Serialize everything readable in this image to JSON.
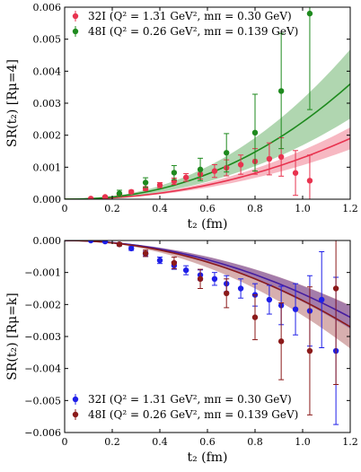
{
  "chart_data": [
    {
      "type": "scatter",
      "xlabel": "t₂ (fm)",
      "ylabel": "SR(t₂) [Rμ=4]",
      "xlim": [
        0,
        1.2
      ],
      "ylim": [
        0,
        0.006
      ],
      "xticks": [
        "0",
        "0.2",
        "0.4",
        "0.6",
        "0.8",
        "1.0",
        "1.2"
      ],
      "yticks": [
        "0.000",
        "0.001",
        "0.002",
        "0.003",
        "0.004",
        "0.005",
        "0.006"
      ],
      "legend_position": "top-left",
      "series": [
        {
          "name": "32I (Q² = 1.31 GeV², mπ = 0.30 GeV)",
          "color": "#e8334f",
          "x": [
            0.11,
            0.17,
            0.23,
            0.28,
            0.34,
            0.4,
            0.46,
            0.51,
            0.57,
            0.63,
            0.68,
            0.74,
            0.8,
            0.86,
            0.91,
            0.97,
            1.03
          ],
          "y": [
            2e-05,
            7e-05,
            0.00014,
            0.00023,
            0.00033,
            0.00044,
            0.00056,
            0.00068,
            0.00078,
            0.00088,
            0.00098,
            0.00108,
            0.00118,
            0.00126,
            0.00132,
            0.00082,
            0.00058
          ],
          "yerr": [
            2e-05,
            3e-05,
            4e-05,
            5e-05,
            6e-05,
            8e-05,
            0.0001,
            0.00012,
            0.00015,
            0.0002,
            0.00025,
            0.0003,
            0.0004,
            0.0005,
            0.0006,
            0.0007,
            0.0008
          ],
          "fit": {
            "a": 0.0019,
            "p": 2.1,
            "width": 0.18
          }
        },
        {
          "name": "48I (Q² = 0.26 GeV², mπ = 0.139 GeV)",
          "color": "#1e8a1e",
          "x": [
            0.23,
            0.34,
            0.46,
            0.57,
            0.68,
            0.8,
            0.91,
            1.03
          ],
          "y": [
            0.00018,
            0.00052,
            0.00083,
            0.00093,
            0.00145,
            0.00208,
            0.00338,
            0.0058
          ],
          "yerr": [
            0.0001,
            0.00015,
            0.00022,
            0.00035,
            0.0006,
            0.0012,
            0.0018,
            0.003
          ],
          "fit": {
            "a": 0.0036,
            "p": 2.2,
            "width": 0.3
          }
        }
      ]
    },
    {
      "type": "scatter",
      "xlabel": "t₂ (fm)",
      "ylabel": "SR(t₂) [Rμ=k]",
      "xlim": [
        0,
        1.2
      ],
      "ylim": [
        -0.006,
        0
      ],
      "xticks": [
        "0",
        "0.2",
        "0.4",
        "0.6",
        "0.8",
        "1.0",
        "1.2"
      ],
      "yticks": [
        "−0.006",
        "−0.005",
        "−0.004",
        "−0.003",
        "−0.002",
        "−0.001",
        "0.000"
      ],
      "legend_position": "bottom-left",
      "series": [
        {
          "name": "32I (Q² = 1.31 GeV², mπ = 0.30 GeV)",
          "color": "#1f1fe8",
          "x": [
            0.11,
            0.17,
            0.23,
            0.28,
            0.34,
            0.4,
            0.46,
            0.51,
            0.57,
            0.63,
            0.68,
            0.74,
            0.8,
            0.86,
            0.91,
            0.97,
            1.03,
            1.08,
            1.14
          ],
          "y": [
            0.0,
            -3e-05,
            -0.00012,
            -0.00025,
            -0.00042,
            -0.00062,
            -0.00078,
            -0.00093,
            -0.00108,
            -0.0012,
            -0.00135,
            -0.0015,
            -0.0017,
            -0.00185,
            -0.00203,
            -0.00215,
            -0.0022,
            -0.00185,
            -0.00345
          ],
          "yerr": [
            2e-05,
            3e-05,
            4e-05,
            6e-05,
            8e-05,
            0.0001,
            0.00012,
            0.00014,
            0.00016,
            0.0002,
            0.00025,
            0.0003,
            0.00035,
            0.00045,
            0.0006,
            0.0008,
            0.0011,
            0.0015,
            0.0023
          ],
          "fit": {
            "a": -0.0024,
            "p": 2.0,
            "width": 0.15
          }
        },
        {
          "name": "48I (Q² = 0.26 GeV², mπ = 0.139 GeV)",
          "color": "#8b1a1a",
          "x": [
            0.23,
            0.34,
            0.46,
            0.57,
            0.68,
            0.8,
            0.91,
            1.03,
            1.14
          ],
          "y": [
            -0.00012,
            -0.0004,
            -0.0007,
            -0.0012,
            -0.00165,
            -0.0024,
            -0.00315,
            -0.00345,
            -0.0015
          ],
          "yerr": [
            5e-05,
            0.0001,
            0.00018,
            0.0003,
            0.00045,
            0.0007,
            0.0012,
            0.002,
            0.003
          ],
          "fit": {
            "a": -0.0027,
            "p": 2.0,
            "width": 0.25
          }
        }
      ]
    }
  ]
}
